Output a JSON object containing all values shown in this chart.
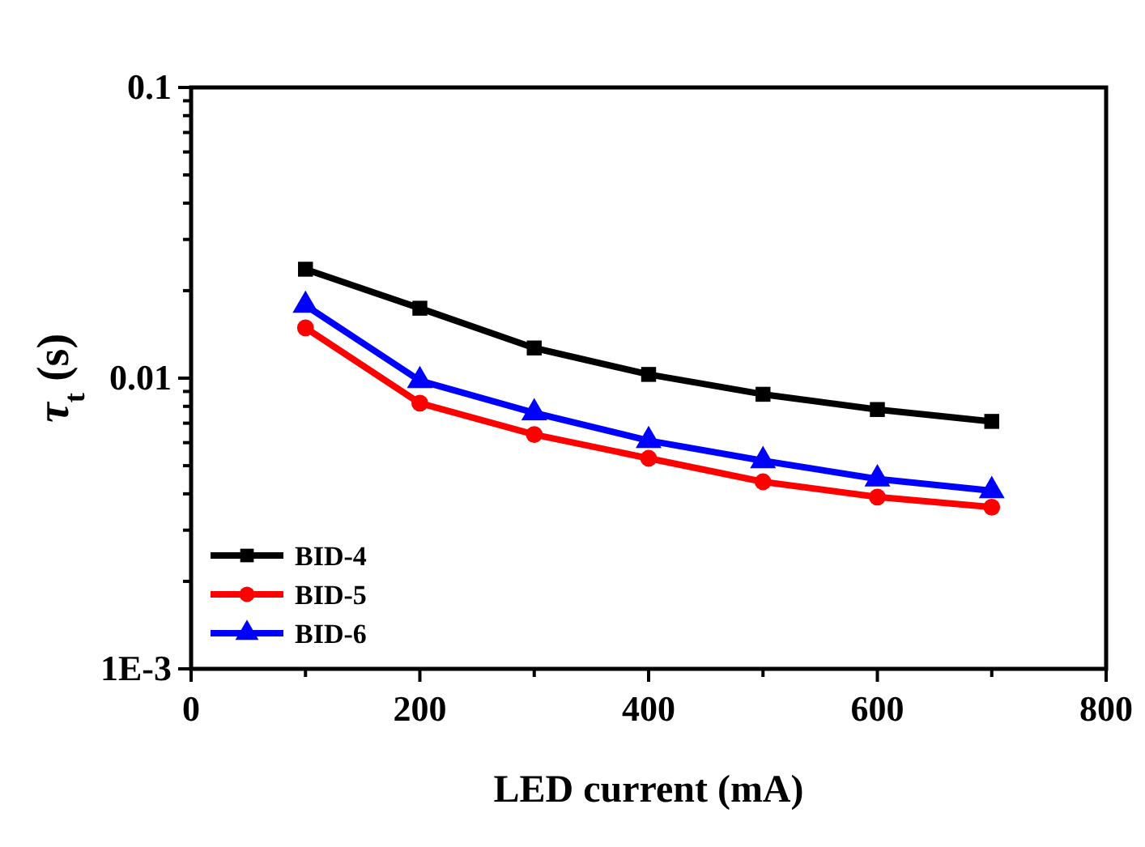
{
  "chart_data": {
    "type": "line",
    "xlabel": "LED current (mA)",
    "ylabel": "τ$_{t}$ (s)",
    "x": [
      100,
      200,
      300,
      400,
      500,
      600,
      700
    ],
    "series": [
      {
        "name": "BID-4",
        "color": "#000000",
        "marker": "square",
        "values": [
          0.0237,
          0.0174,
          0.0127,
          0.0103,
          0.0088,
          0.0078,
          0.0071
        ]
      },
      {
        "name": "BID-5",
        "color": "#ff0000",
        "marker": "circle",
        "values": [
          0.0149,
          0.0082,
          0.0064,
          0.0053,
          0.0044,
          0.0039,
          0.0036
        ]
      },
      {
        "name": "BID-6",
        "color": "#0000ff",
        "marker": "triangle",
        "values": [
          0.0178,
          0.0098,
          0.0076,
          0.0061,
          0.0052,
          0.0045,
          0.0041
        ]
      }
    ],
    "log": "y",
    "xlim": [
      0,
      800
    ],
    "xticks": [
      0,
      {
        "value": 100,
        "label": null
      },
      200,
      {
        "value": 300,
        "label": null
      },
      400,
      {
        "value": 500,
        "label": null
      },
      600,
      {
        "value": 700,
        "label": null
      },
      800
    ],
    "ylim": [
      0.001,
      0.1
    ],
    "yticks": [
      {
        "value": 0.001,
        "label": "1E-3"
      },
      {
        "value": 0.002,
        "label": null
      },
      {
        "value": 0.003,
        "label": null
      },
      {
        "value": 0.004,
        "label": null
      },
      {
        "value": 0.005,
        "label": null
      },
      {
        "value": 0.006,
        "label": null
      },
      {
        "value": 0.007,
        "label": null
      },
      {
        "value": 0.008,
        "label": null
      },
      {
        "value": 0.009,
        "label": null
      },
      0.01,
      {
        "value": 0.02,
        "label": null
      },
      {
        "value": 0.03,
        "label": null
      },
      {
        "value": 0.04,
        "label": null
      },
      {
        "value": 0.05,
        "label": null
      },
      {
        "value": 0.06,
        "label": null
      },
      {
        "value": 0.07,
        "label": null
      },
      {
        "value": 0.08,
        "label": null
      },
      {
        "value": 0.09,
        "label": null
      },
      0.1
    ],
    "grid": false,
    "legend": "bottom left",
    "line_style": "solid"
  }
}
